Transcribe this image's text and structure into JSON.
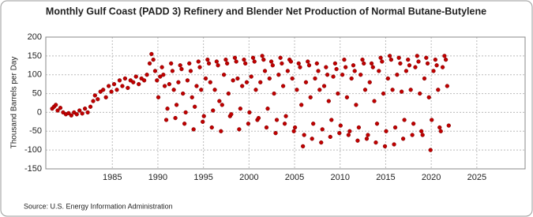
{
  "chart_data": {
    "type": "scatter",
    "title": "Monthly Gulf Coast (PADD 3) Refinery and Blender Net Production of Normal Butane-Butylene",
    "y_label": "Thousand Barrels per Day",
    "source": "Source: U.S. Energy Information Administration",
    "color": "#c00000",
    "xlim": [
      1977.7,
      2030.3
    ],
    "ylim": [
      -150,
      200
    ],
    "xticks": [
      1985,
      1990,
      1995,
      2000,
      2005,
      2010,
      2015,
      2020,
      2025
    ],
    "yticks": [
      -150,
      -100,
      -50,
      0,
      50,
      100,
      150,
      200
    ],
    "grid": true,
    "x": [
      1978.4,
      1978.6,
      1978.8,
      1979.0,
      1979.3,
      1979.6,
      1979.9,
      1980.2,
      1980.5,
      1980.8,
      1981.1,
      1981.4,
      1981.7,
      1982.0,
      1982.3,
      1982.6,
      1982.9,
      1983.1,
      1983.4,
      1983.7,
      1984.0,
      1984.3,
      1984.6,
      1984.9,
      1985.2,
      1985.5,
      1985.8,
      1986.1,
      1986.4,
      1986.7,
      1987.0,
      1987.3,
      1987.6,
      1987.9,
      1988.2,
      1988.5,
      1988.8,
      1989.1,
      1989.3,
      1989.5,
      1989.7,
      1989.9,
      1990.05,
      1990.25,
      1990.45,
      1990.6,
      1990.75,
      1990.92,
      1991.05,
      1991.25,
      1991.45,
      1991.6,
      1991.75,
      1991.92,
      1992.05,
      1992.25,
      1992.45,
      1992.6,
      1992.75,
      1992.92,
      1993.05,
      1993.25,
      1993.45,
      1993.6,
      1993.75,
      1993.92,
      1994.05,
      1994.25,
      1994.45,
      1994.6,
      1994.75,
      1994.92,
      1995.05,
      1995.25,
      1995.45,
      1995.6,
      1995.75,
      1995.92,
      1996.05,
      1996.25,
      1996.45,
      1996.6,
      1996.75,
      1996.92,
      1997.05,
      1997.25,
      1997.45,
      1997.6,
      1997.75,
      1997.92,
      1998.05,
      1998.25,
      1998.45,
      1998.6,
      1998.75,
      1998.92,
      1999.05,
      1999.25,
      1999.45,
      1999.6,
      1999.75,
      1999.92,
      2000.05,
      2000.25,
      2000.45,
      2000.6,
      2000.75,
      2000.92,
      2001.05,
      2001.25,
      2001.45,
      2001.6,
      2001.75,
      2001.92,
      2002.05,
      2002.25,
      2002.45,
      2002.6,
      2002.75,
      2002.92,
      2003.05,
      2003.25,
      2003.45,
      2003.6,
      2003.75,
      2003.92,
      2004.05,
      2004.25,
      2004.45,
      2004.6,
      2004.75,
      2004.92,
      2005.05,
      2005.25,
      2005.45,
      2005.6,
      2005.75,
      2005.92,
      2006.05,
      2006.25,
      2006.45,
      2006.6,
      2006.75,
      2006.92,
      2007.05,
      2007.25,
      2007.45,
      2007.6,
      2007.75,
      2007.92,
      2008.05,
      2008.25,
      2008.45,
      2008.6,
      2008.75,
      2008.92,
      2009.05,
      2009.25,
      2009.45,
      2009.6,
      2009.75,
      2009.92,
      2010.05,
      2010.25,
      2010.45,
      2010.6,
      2010.75,
      2010.92,
      2011.05,
      2011.25,
      2011.45,
      2011.6,
      2011.75,
      2011.92,
      2012.05,
      2012.25,
      2012.45,
      2012.6,
      2012.75,
      2012.92,
      2013.05,
      2013.25,
      2013.45,
      2013.6,
      2013.75,
      2013.92,
      2014.05,
      2014.25,
      2014.45,
      2014.6,
      2014.75,
      2014.92,
      2015.05,
      2015.25,
      2015.45,
      2015.6,
      2015.75,
      2015.92,
      2016.05,
      2016.25,
      2016.45,
      2016.6,
      2016.75,
      2016.92,
      2017.05,
      2017.25,
      2017.45,
      2017.6,
      2017.75,
      2017.92,
      2018.05,
      2018.25,
      2018.45,
      2018.6,
      2018.75,
      2018.92,
      2019.05,
      2019.25,
      2019.45,
      2019.6,
      2019.75,
      2019.92,
      2020.05,
      2020.25,
      2020.45,
      2020.6,
      2020.75,
      2020.92,
      2021.05,
      2021.25,
      2021.45,
      2021.6,
      2021.75,
      2021.92
    ],
    "values": [
      10,
      15,
      20,
      5,
      12,
      0,
      -5,
      -2,
      -8,
      0,
      -5,
      5,
      -3,
      10,
      0,
      15,
      30,
      45,
      35,
      55,
      60,
      40,
      70,
      55,
      75,
      60,
      85,
      70,
      90,
      65,
      85,
      80,
      95,
      75,
      90,
      85,
      100,
      130,
      155,
      140,
      110,
      85,
      40,
      95,
      120,
      100,
      70,
      -20,
      10,
      75,
      130,
      110,
      60,
      -15,
      20,
      80,
      125,
      115,
      50,
      -30,
      0,
      85,
      130,
      110,
      40,
      -45,
      15,
      70,
      135,
      120,
      60,
      -25,
      -10,
      90,
      140,
      130,
      80,
      -40,
      5,
      60,
      135,
      125,
      30,
      -50,
      20,
      100,
      140,
      130,
      50,
      -10,
      -5,
      85,
      145,
      135,
      90,
      -45,
      10,
      70,
      140,
      130,
      80,
      -30,
      0,
      95,
      145,
      135,
      60,
      -20,
      -15,
      80,
      150,
      140,
      110,
      -40,
      10,
      90,
      135,
      125,
      50,
      -55,
      -20,
      100,
      145,
      130,
      70,
      -30,
      -10,
      110,
      140,
      135,
      90,
      -50,
      -40,
      60,
      130,
      120,
      20,
      -90,
      -60,
      80,
      135,
      125,
      40,
      -70,
      -30,
      90,
      130,
      110,
      60,
      -80,
      -45,
      70,
      120,
      100,
      30,
      -65,
      -20,
      95,
      130,
      115,
      50,
      -55,
      -35,
      100,
      140,
      120,
      40,
      -60,
      -50,
      90,
      125,
      110,
      20,
      -75,
      -40,
      100,
      140,
      130,
      60,
      -70,
      -60,
      80,
      130,
      120,
      30,
      -80,
      -30,
      110,
      145,
      135,
      50,
      -90,
      -50,
      90,
      150,
      140,
      60,
      -85,
      -40,
      100,
      145,
      130,
      55,
      -70,
      -20,
      110,
      140,
      125,
      60,
      -60,
      -30,
      120,
      150,
      135,
      50,
      -50,
      -60,
      90,
      145,
      130,
      40,
      -100,
      -20,
      110,
      140,
      125,
      60,
      -40,
      -50,
      120,
      150,
      140,
      70,
      -35
    ]
  }
}
